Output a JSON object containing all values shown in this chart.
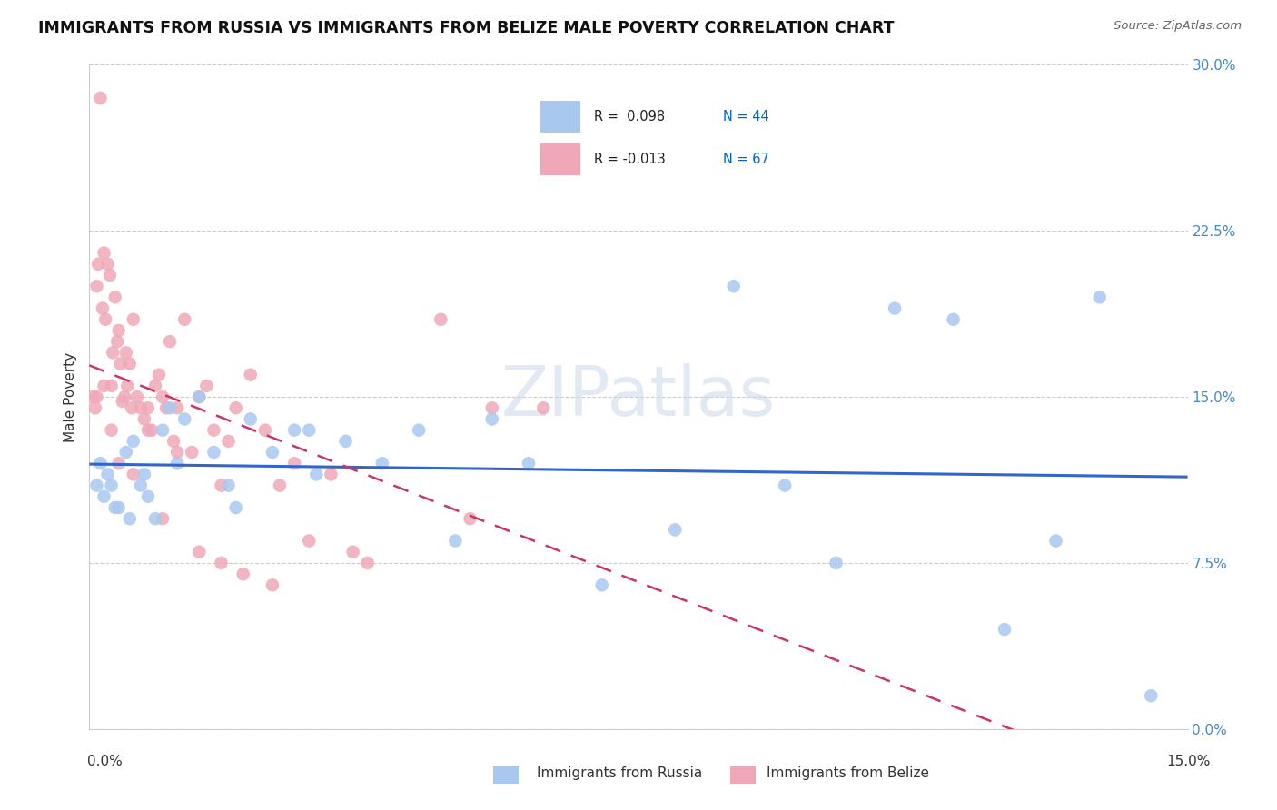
{
  "title": "IMMIGRANTS FROM RUSSIA VS IMMIGRANTS FROM BELIZE MALE POVERTY CORRELATION CHART",
  "source": "Source: ZipAtlas.com",
  "ylabel": "Male Poverty",
  "ytick_labels": [
    "0.0%",
    "7.5%",
    "15.0%",
    "22.5%",
    "30.0%"
  ],
  "ytick_values": [
    0.0,
    7.5,
    15.0,
    22.5,
    30.0
  ],
  "xlim": [
    0.0,
    15.0
  ],
  "ylim": [
    0.0,
    30.0
  ],
  "color_russia": "#a8c8f0",
  "color_belize": "#f0a8b8",
  "trendline_russia_color": "#3366cc",
  "trendline_belize_color": "#cc3366",
  "legend_color_r": "#0066cc",
  "legend_color_n": "#0066cc",
  "russia_x": [
    0.1,
    0.15,
    0.2,
    0.25,
    0.3,
    0.4,
    0.5,
    0.6,
    0.7,
    0.8,
    0.9,
    1.0,
    1.1,
    1.2,
    1.3,
    1.5,
    1.7,
    1.9,
    2.2,
    2.5,
    2.8,
    3.1,
    3.5,
    4.0,
    4.5,
    5.0,
    5.5,
    6.0,
    7.0,
    8.0,
    8.8,
    9.5,
    10.2,
    11.0,
    11.8,
    12.5,
    13.2,
    13.8,
    14.5,
    0.35,
    0.55,
    0.75,
    2.0,
    3.0
  ],
  "russia_y": [
    11.0,
    12.0,
    10.5,
    11.5,
    11.0,
    10.0,
    12.5,
    13.0,
    11.0,
    10.5,
    9.5,
    13.5,
    14.5,
    12.0,
    14.0,
    15.0,
    12.5,
    11.0,
    14.0,
    12.5,
    13.5,
    11.5,
    13.0,
    12.0,
    13.5,
    8.5,
    14.0,
    12.0,
    6.5,
    9.0,
    20.0,
    11.0,
    7.5,
    19.0,
    18.5,
    4.5,
    8.5,
    19.5,
    1.5,
    10.0,
    9.5,
    11.5,
    10.0,
    13.5
  ],
  "belize_x": [
    0.05,
    0.08,
    0.1,
    0.12,
    0.15,
    0.18,
    0.2,
    0.22,
    0.25,
    0.28,
    0.3,
    0.32,
    0.35,
    0.38,
    0.4,
    0.42,
    0.45,
    0.48,
    0.5,
    0.52,
    0.55,
    0.58,
    0.6,
    0.65,
    0.7,
    0.75,
    0.8,
    0.85,
    0.9,
    0.95,
    1.0,
    1.05,
    1.1,
    1.15,
    1.2,
    1.3,
    1.4,
    1.5,
    1.6,
    1.7,
    1.8,
    1.9,
    2.0,
    2.2,
    2.4,
    2.6,
    2.8,
    3.0,
    3.3,
    3.6,
    0.1,
    0.2,
    0.3,
    0.4,
    0.6,
    0.8,
    1.0,
    1.2,
    1.5,
    1.8,
    2.1,
    2.5,
    3.8,
    5.5,
    6.2,
    4.8,
    5.2
  ],
  "belize_y": [
    15.0,
    14.5,
    20.0,
    21.0,
    28.5,
    19.0,
    21.5,
    18.5,
    21.0,
    20.5,
    15.5,
    17.0,
    19.5,
    17.5,
    18.0,
    16.5,
    14.8,
    15.0,
    17.0,
    15.5,
    16.5,
    14.5,
    18.5,
    15.0,
    14.5,
    14.0,
    14.5,
    13.5,
    15.5,
    16.0,
    15.0,
    14.5,
    17.5,
    13.0,
    14.5,
    18.5,
    12.5,
    15.0,
    15.5,
    13.5,
    11.0,
    13.0,
    14.5,
    16.0,
    13.5,
    11.0,
    12.0,
    8.5,
    11.5,
    8.0,
    15.0,
    15.5,
    13.5,
    12.0,
    11.5,
    13.5,
    9.5,
    12.5,
    8.0,
    7.5,
    7.0,
    6.5,
    7.5,
    14.5,
    14.5,
    18.5,
    9.5
  ]
}
